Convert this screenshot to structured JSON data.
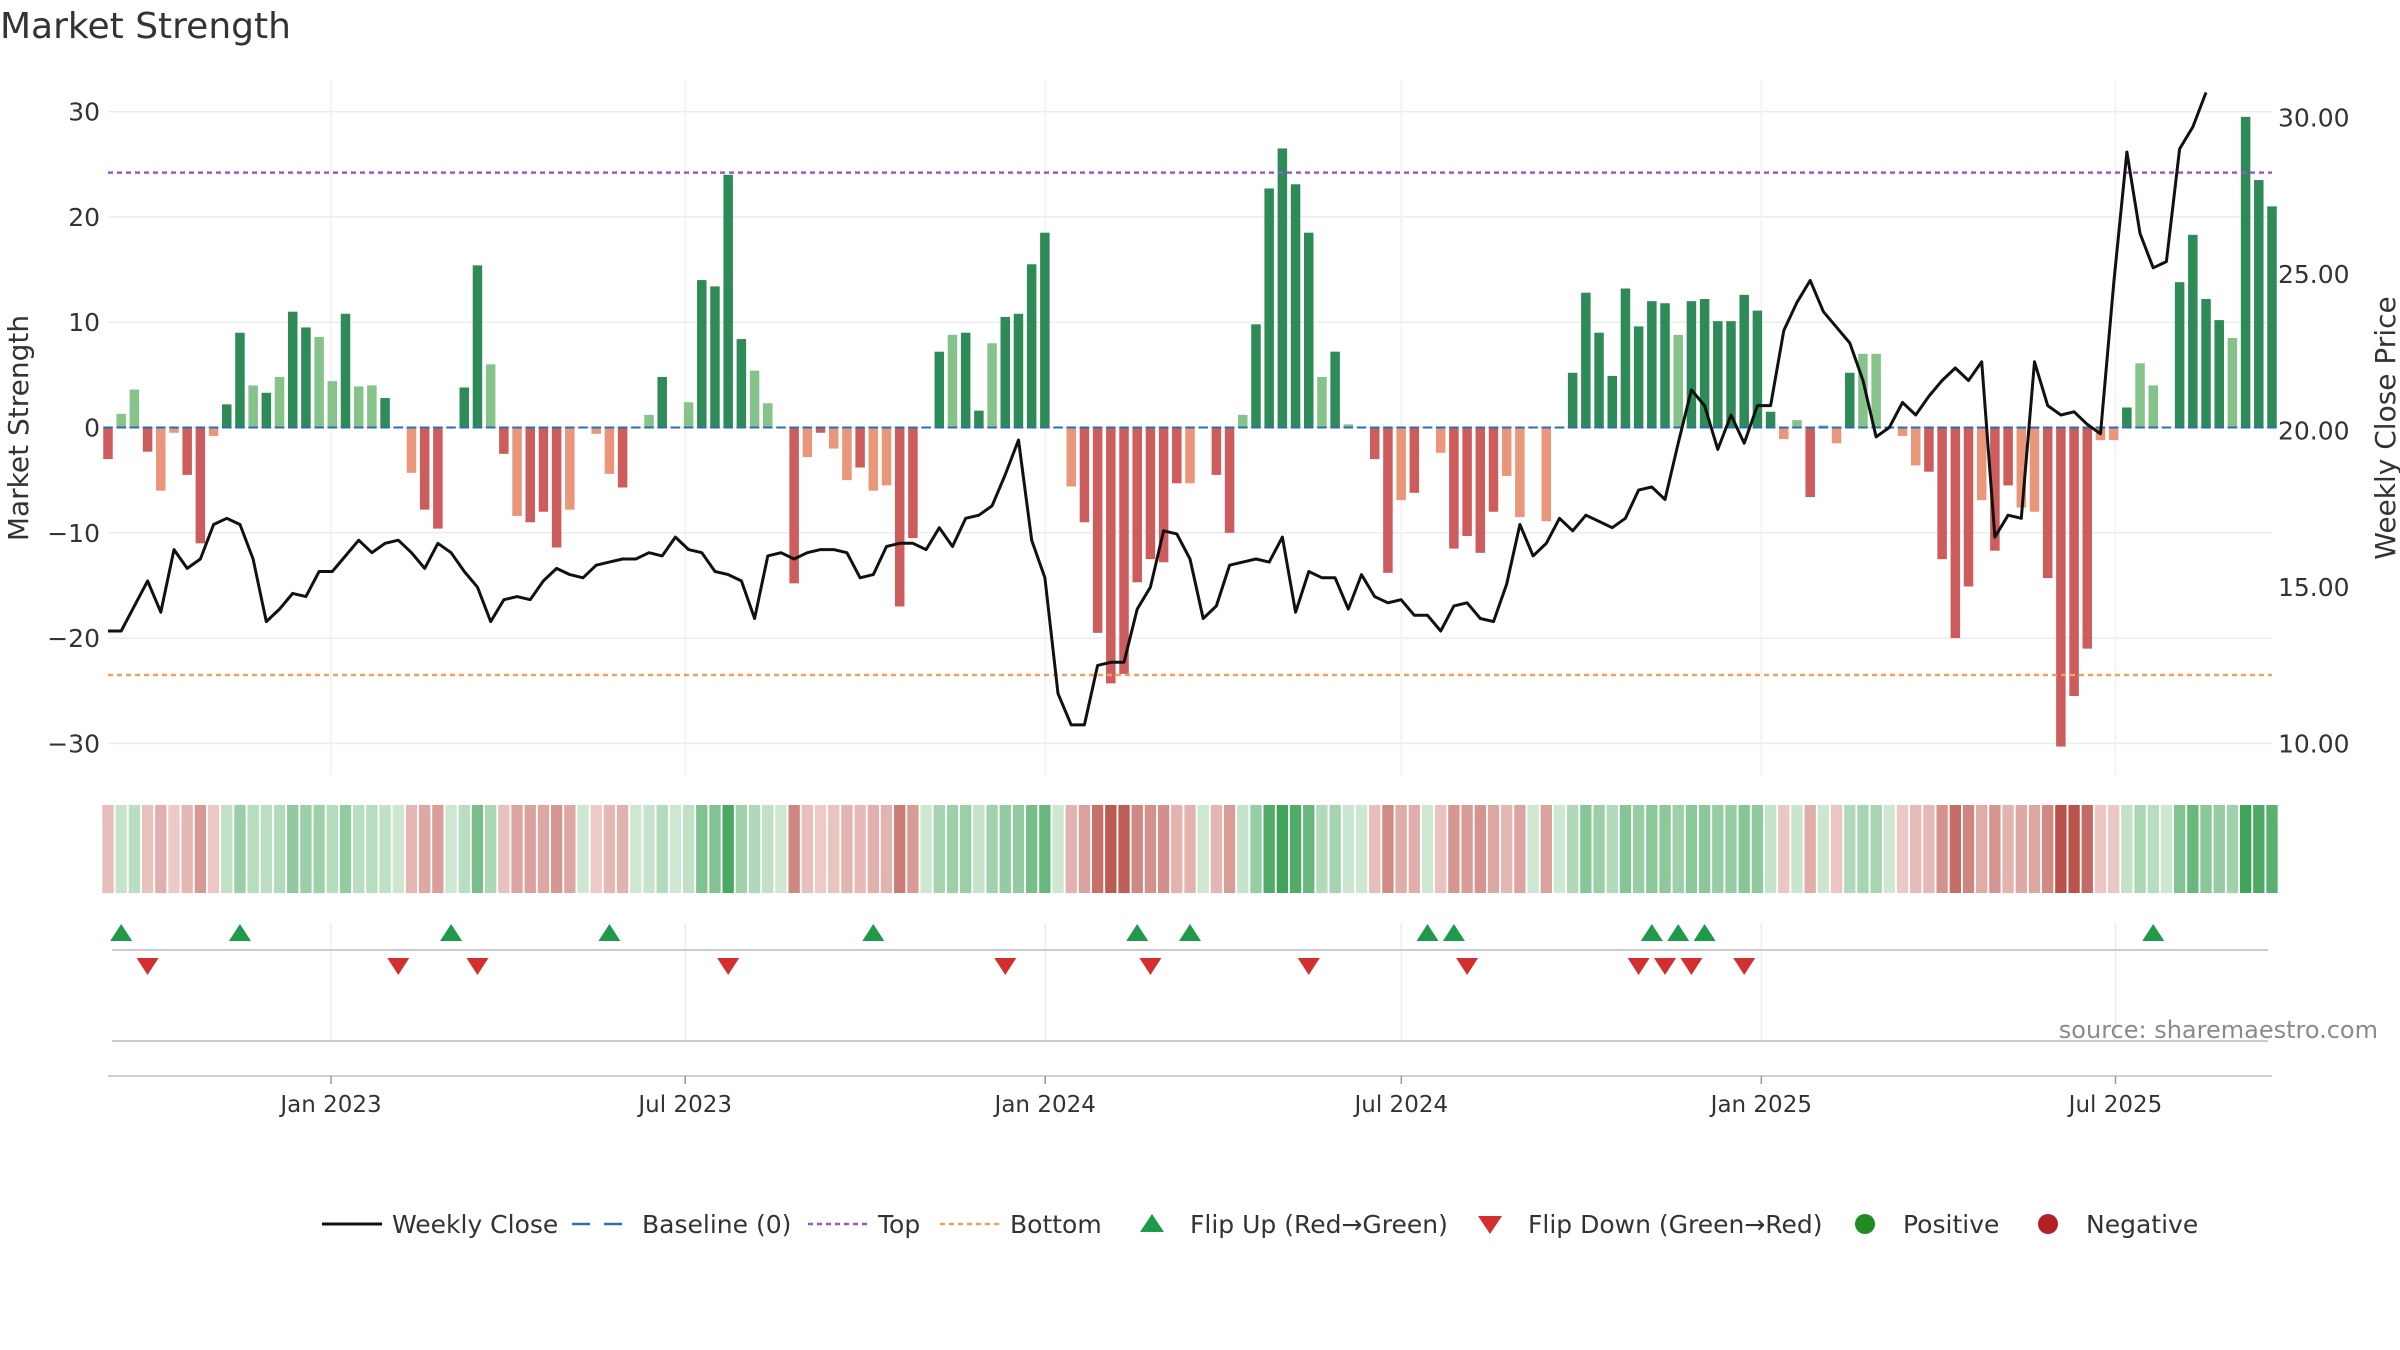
{
  "chart_data": {
    "type": "bar",
    "title": "Market Strength",
    "ylabel_left": "Market Strength",
    "ylabel_right": "Weekly Close Price",
    "ylim_left": [
      -33,
      33
    ],
    "ylim_right": [
      9,
      31.2
    ],
    "yticks_left": [
      30,
      20,
      10,
      0,
      -10,
      -20,
      -30
    ],
    "yticks_left_labels": [
      "30",
      "20",
      "10",
      "0",
      "−10",
      "−20",
      "−30"
    ],
    "yticks_right": [
      30,
      25,
      20,
      15,
      10
    ],
    "yticks_right_labels": [
      "30.00",
      "25.00",
      "20.00",
      "15.00",
      "10.00"
    ],
    "x_start": "2022-09-09",
    "x_end": "2025-09-19",
    "xticks": [
      "2023-01-01",
      "2023-07-01",
      "2024-01-01",
      "2024-07-01",
      "2025-01-01",
      "2025-07-01"
    ],
    "xtick_labels": [
      "Jan 2023",
      "Jul 2023",
      "Jan 2024",
      "Jul 2024",
      "Jan 2025",
      "Jul 2025"
    ],
    "top_line": 24.2,
    "bottom_line": -23.5,
    "baseline": 0,
    "source_text": "source: sharemaestro.com",
    "strength": [
      -3.0,
      1.3,
      3.6,
      -2.3,
      -6.0,
      -0.5,
      -4.5,
      -11.0,
      -0.8,
      2.2,
      9.0,
      4.0,
      3.3,
      4.8,
      11.0,
      9.5,
      8.6,
      4.4,
      10.8,
      3.9,
      4.0,
      2.8,
      0,
      -4.3,
      -7.8,
      -9.6,
      0,
      3.8,
      15.4,
      6.0,
      -2.5,
      -8.4,
      -9.0,
      -8.0,
      -11.4,
      -7.8,
      0,
      -0.6,
      -4.4,
      -5.7,
      0,
      1.2,
      4.8,
      0,
      2.4,
      14.0,
      13.4,
      24.0,
      8.4,
      5.4,
      2.3,
      0,
      -14.8,
      -2.8,
      -0.5,
      -2.0,
      -5.0,
      -3.8,
      -6.0,
      -5.5,
      -17.0,
      -10.5,
      0,
      7.2,
      8.8,
      9.0,
      1.6,
      8.0,
      10.5,
      10.8,
      15.5,
      18.5,
      0,
      -5.6,
      -9.0,
      -19.5,
      -24.3,
      -23.4,
      -14.7,
      -12.5,
      -12.8,
      -5.3,
      -5.3,
      0,
      -4.5,
      -10.0,
      1.2,
      9.8,
      22.7,
      26.5,
      23.1,
      18.5,
      4.8,
      7.2,
      0.3,
      0,
      -3.0,
      -13.8,
      -6.9,
      -6.2,
      0,
      -2.4,
      -11.5,
      -10.3,
      -11.9,
      -8.0,
      -4.6,
      -8.5,
      0,
      -8.9,
      0,
      5.2,
      12.8,
      9.0,
      4.9,
      13.2,
      9.6,
      12.0,
      11.8,
      8.8,
      12.0,
      12.2,
      10.1,
      10.1,
      12.6,
      11.1,
      1.5,
      -1.1,
      0.7,
      -6.6,
      0.2,
      -1.5,
      5.2,
      7.0,
      7.0,
      0,
      -0.8,
      -3.6,
      -4.2,
      -12.5,
      -20.0,
      -15.1,
      -6.9,
      -11.7,
      -5.5,
      -7.6,
      -8.0,
      -14.3,
      -30.3,
      -25.5,
      -21.0,
      -1.2,
      -1.2,
      1.9,
      6.1,
      4.0,
      0,
      13.8,
      18.3,
      12.2,
      10.2,
      8.5,
      29.5,
      23.5,
      21.0
    ],
    "close": [
      13.6,
      13.6,
      14.4,
      15.2,
      14.2,
      16.2,
      15.6,
      15.9,
      17.0,
      17.2,
      17.0,
      15.9,
      13.9,
      14.3,
      14.8,
      14.7,
      15.5,
      15.5,
      16.0,
      16.5,
      16.1,
      16.4,
      16.5,
      16.1,
      15.6,
      16.4,
      16.1,
      15.5,
      15.0,
      13.9,
      14.6,
      14.7,
      14.6,
      15.2,
      15.6,
      15.4,
      15.3,
      15.7,
      15.8,
      15.9,
      15.9,
      16.1,
      16.0,
      16.6,
      16.2,
      16.1,
      15.5,
      15.4,
      15.2,
      14.0,
      16.0,
      16.1,
      15.9,
      16.1,
      16.2,
      16.2,
      16.1,
      15.3,
      15.4,
      16.3,
      16.4,
      16.4,
      16.2,
      16.9,
      16.3,
      17.2,
      17.3,
      17.6,
      18.6,
      19.7,
      16.5,
      15.3,
      11.6,
      10.6,
      10.6,
      12.5,
      12.6,
      12.6,
      14.3,
      15.0,
      16.8,
      16.7,
      15.9,
      14.0,
      14.4,
      15.7,
      15.8,
      15.9,
      15.8,
      16.6,
      14.2,
      15.5,
      15.3,
      15.3,
      14.3,
      15.4,
      14.7,
      14.5,
      14.6,
      14.1,
      14.1,
      13.6,
      14.4,
      14.5,
      14.0,
      13.9,
      15.1,
      17.0,
      16.0,
      16.4,
      17.2,
      16.8,
      17.3,
      17.1,
      16.9,
      17.2,
      18.1,
      18.2,
      17.8,
      19.6,
      21.3,
      20.8,
      19.4,
      20.5,
      19.6,
      20.8,
      20.8,
      23.2,
      24.1,
      24.8,
      23.8,
      23.3,
      22.8,
      21.6,
      19.8,
      20.1,
      20.9,
      20.5,
      21.1,
      21.6,
      22.0,
      21.6,
      22.2,
      16.6,
      17.3,
      17.2,
      22.2,
      20.8,
      20.5,
      20.6,
      20.2,
      19.9,
      24.7,
      28.9,
      26.3,
      25.2,
      25.4,
      29.0,
      29.7,
      30.8
    ],
    "flip_up_weeks": [
      1,
      10,
      26,
      38,
      58,
      78,
      82,
      100,
      102,
      117,
      119,
      121,
      155
    ],
    "flip_down_weeks": [
      3,
      22,
      28,
      47,
      68,
      79,
      91,
      103,
      116,
      118,
      120,
      124
    ],
    "legend": [
      "Weekly Close",
      "Baseline (0)",
      "Top",
      "Bottom",
      "Flip Up (Red→Green)",
      "Flip Down (Green→Red)",
      "Positive",
      "Negative"
    ],
    "colors": {
      "pos_strong": "#2e8b57",
      "pos_light": "#86c38a",
      "neg_strong": "#cd5c5c",
      "neg_light": "#e9967a",
      "close_line": "#111111",
      "baseline": "#2a6fb0",
      "top": "#9b59d0",
      "bottom": "#f0a060",
      "flip_up": "#1f9a4a",
      "flip_down": "#d32f2f",
      "positive_dot": "#228b22",
      "negative_dot": "#b22222"
    }
  }
}
